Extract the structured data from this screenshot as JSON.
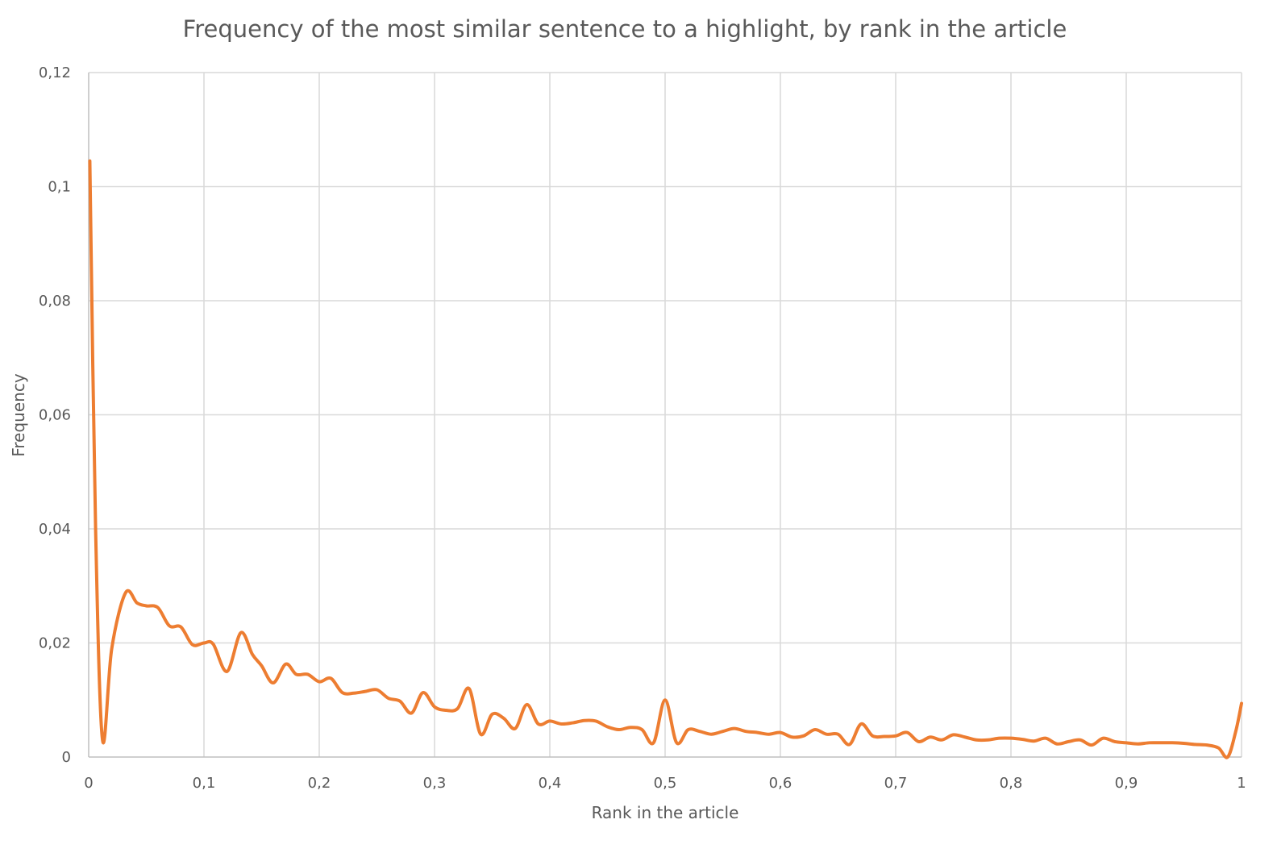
{
  "chart_data": {
    "type": "line",
    "title": "Frequency of the most similar sentence to a highlight, by rank in the article",
    "xlabel": "Rank in the article",
    "ylabel": "Frequency",
    "xlim": [
      0,
      1
    ],
    "ylim": [
      0,
      0.12
    ],
    "xticks": [
      0,
      0.1,
      0.2,
      0.3,
      0.4,
      0.5,
      0.6,
      0.7,
      0.8,
      0.9,
      1
    ],
    "xtick_labels": [
      "0",
      "0,1",
      "0,2",
      "0,3",
      "0,4",
      "0,5",
      "0,6",
      "0,7",
      "0,8",
      "0,9",
      "1"
    ],
    "yticks": [
      0,
      0.02,
      0.04,
      0.06,
      0.08,
      0.1,
      0.12
    ],
    "ytick_labels": [
      "0",
      "0,02",
      "0,04",
      "0,06",
      "0,08",
      "0,1",
      "0,12"
    ],
    "grid": true,
    "smooth": true,
    "color": "#ED7D31",
    "series": [
      {
        "x": [
          0.001,
          0.006,
          0.012,
          0.02,
          0.032,
          0.042,
          0.05,
          0.06,
          0.07,
          0.08,
          0.09,
          0.1,
          0.108,
          0.12,
          0.132,
          0.142,
          0.15,
          0.16,
          0.171,
          0.18,
          0.19,
          0.2,
          0.21,
          0.22,
          0.23,
          0.24,
          0.25,
          0.26,
          0.27,
          0.28,
          0.29,
          0.3,
          0.31,
          0.32,
          0.33,
          0.34,
          0.35,
          0.36,
          0.37,
          0.38,
          0.39,
          0.4,
          0.41,
          0.42,
          0.43,
          0.44,
          0.45,
          0.46,
          0.47,
          0.48,
          0.49,
          0.5,
          0.51,
          0.52,
          0.53,
          0.54,
          0.55,
          0.56,
          0.57,
          0.58,
          0.59,
          0.6,
          0.61,
          0.62,
          0.63,
          0.64,
          0.65,
          0.66,
          0.67,
          0.68,
          0.69,
          0.7,
          0.71,
          0.72,
          0.73,
          0.74,
          0.75,
          0.76,
          0.77,
          0.78,
          0.79,
          0.8,
          0.81,
          0.82,
          0.83,
          0.84,
          0.85,
          0.86,
          0.87,
          0.88,
          0.89,
          0.9,
          0.91,
          0.92,
          0.93,
          0.94,
          0.95,
          0.96,
          0.97,
          0.98,
          0.988,
          0.995,
          1.0
        ],
        "y": [
          0.1045,
          0.04,
          0.003,
          0.019,
          0.0288,
          0.027,
          0.0265,
          0.0262,
          0.023,
          0.0228,
          0.0197,
          0.02,
          0.0198,
          0.015,
          0.0218,
          0.018,
          0.016,
          0.013,
          0.0163,
          0.0145,
          0.0145,
          0.0132,
          0.0138,
          0.0113,
          0.0112,
          0.0115,
          0.0118,
          0.0103,
          0.0098,
          0.0077,
          0.0113,
          0.0088,
          0.0082,
          0.0085,
          0.012,
          0.004,
          0.0075,
          0.0068,
          0.005,
          0.0092,
          0.0058,
          0.0063,
          0.0058,
          0.006,
          0.0064,
          0.0063,
          0.0053,
          0.0048,
          0.0052,
          0.0048,
          0.0025,
          0.01,
          0.0025,
          0.0048,
          0.0045,
          0.004,
          0.0045,
          0.005,
          0.0045,
          0.0043,
          0.004,
          0.0043,
          0.0035,
          0.0037,
          0.0048,
          0.004,
          0.004,
          0.0022,
          0.0058,
          0.0037,
          0.0036,
          0.0037,
          0.0043,
          0.0027,
          0.0035,
          0.003,
          0.0039,
          0.0035,
          0.003,
          0.003,
          0.0033,
          0.0033,
          0.0031,
          0.0028,
          0.0033,
          0.0023,
          0.0027,
          0.003,
          0.0021,
          0.0033,
          0.0027,
          0.0025,
          0.0023,
          0.0025,
          0.0025,
          0.0025,
          0.0024,
          0.0022,
          0.0021,
          0.0016,
          0.0,
          0.0045,
          0.0094
        ]
      }
    ]
  }
}
